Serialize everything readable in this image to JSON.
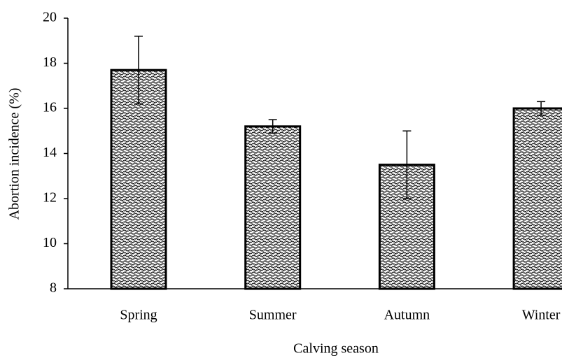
{
  "chart_data": {
    "type": "bar",
    "x_label": "Calving season",
    "y_label": "Abortion incidence (%)",
    "categories": [
      "Spring",
      "Summer",
      "Autumn",
      "Winter"
    ],
    "values": [
      17.7,
      15.2,
      13.5,
      16.0
    ],
    "errors": [
      1.5,
      0.3,
      1.5,
      0.3
    ],
    "ylim": [
      8,
      20
    ],
    "yticks": [
      8,
      10,
      12,
      14,
      16,
      18,
      20
    ],
    "grid": false
  }
}
